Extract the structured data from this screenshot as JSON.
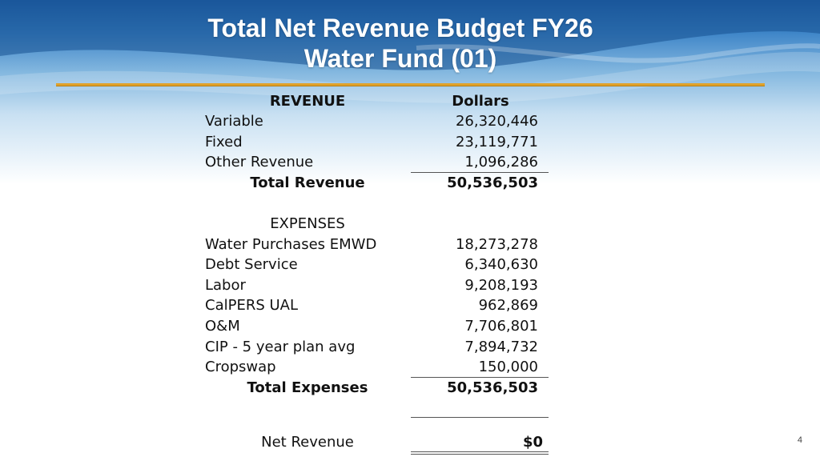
{
  "slide": {
    "title_line1": "Total Net Revenue Budget FY26",
    "title_line2": "Water Fund (01)",
    "page_number": "4"
  },
  "colors": {
    "header_blue": "#1f5fa8",
    "rule_gold": "#e0a22a"
  },
  "table": {
    "revenue_header": "REVENUE",
    "dollars_header": "Dollars",
    "revenue_rows": [
      {
        "label": "Variable",
        "value": "26,320,446"
      },
      {
        "label": "Fixed",
        "value": "23,119,771"
      },
      {
        "label": "Other Revenue",
        "value": "1,096,286"
      }
    ],
    "total_revenue": {
      "label": "Total Revenue",
      "value": "50,536,503"
    },
    "expenses_header": "EXPENSES",
    "expense_rows": [
      {
        "label": "Water Purchases EMWD",
        "value": "18,273,278"
      },
      {
        "label": "Debt Service",
        "value": "6,340,630"
      },
      {
        "label": "Labor",
        "value": "9,208,193"
      },
      {
        "label": "CalPERS UAL",
        "value": "962,869"
      },
      {
        "label": "O&M",
        "value": "7,706,801"
      },
      {
        "label": "CIP - 5 year plan avg",
        "value": "7,894,732"
      },
      {
        "label": "Cropswap",
        "value": "150,000"
      }
    ],
    "total_expenses": {
      "label": "Total Expenses",
      "value": "50,536,503"
    },
    "net_revenue": {
      "label": "Net Revenue",
      "value": "$0"
    }
  }
}
